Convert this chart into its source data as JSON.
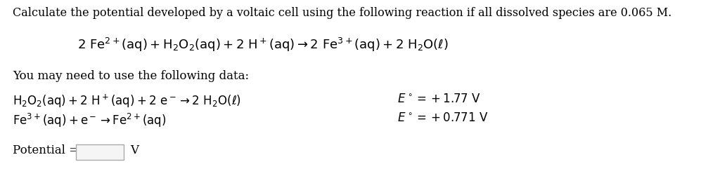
{
  "bg_color": "#ffffff",
  "text_color": "#000000",
  "figsize": [
    10.24,
    2.61
  ],
  "dpi": 100,
  "line1": "Calculate the potential developed by a voltaic cell using the following reaction if all dissolved species are 0.065 M.",
  "line1_fontsize": 11.5,
  "reaction_fontsize": 13,
  "eq_fontsize": 12,
  "potential_fontsize": 12
}
